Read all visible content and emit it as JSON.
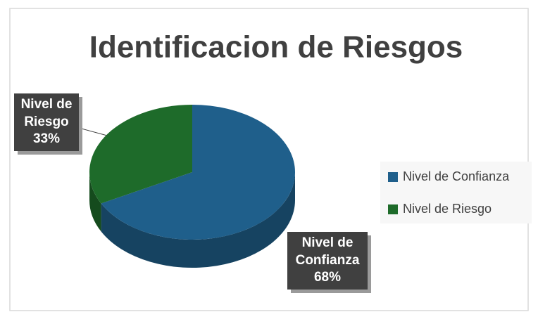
{
  "chart_data": {
    "type": "pie",
    "title": "Identificacion de Riesgos",
    "categories": [
      "Nivel de Confianza",
      "Nivel de Riesgo"
    ],
    "values": [
      68,
      33
    ],
    "value_labels": [
      "68%",
      "33%"
    ],
    "colors": [
      "#1f5f8b",
      "#1e6b2a"
    ],
    "legend": "right"
  }
}
